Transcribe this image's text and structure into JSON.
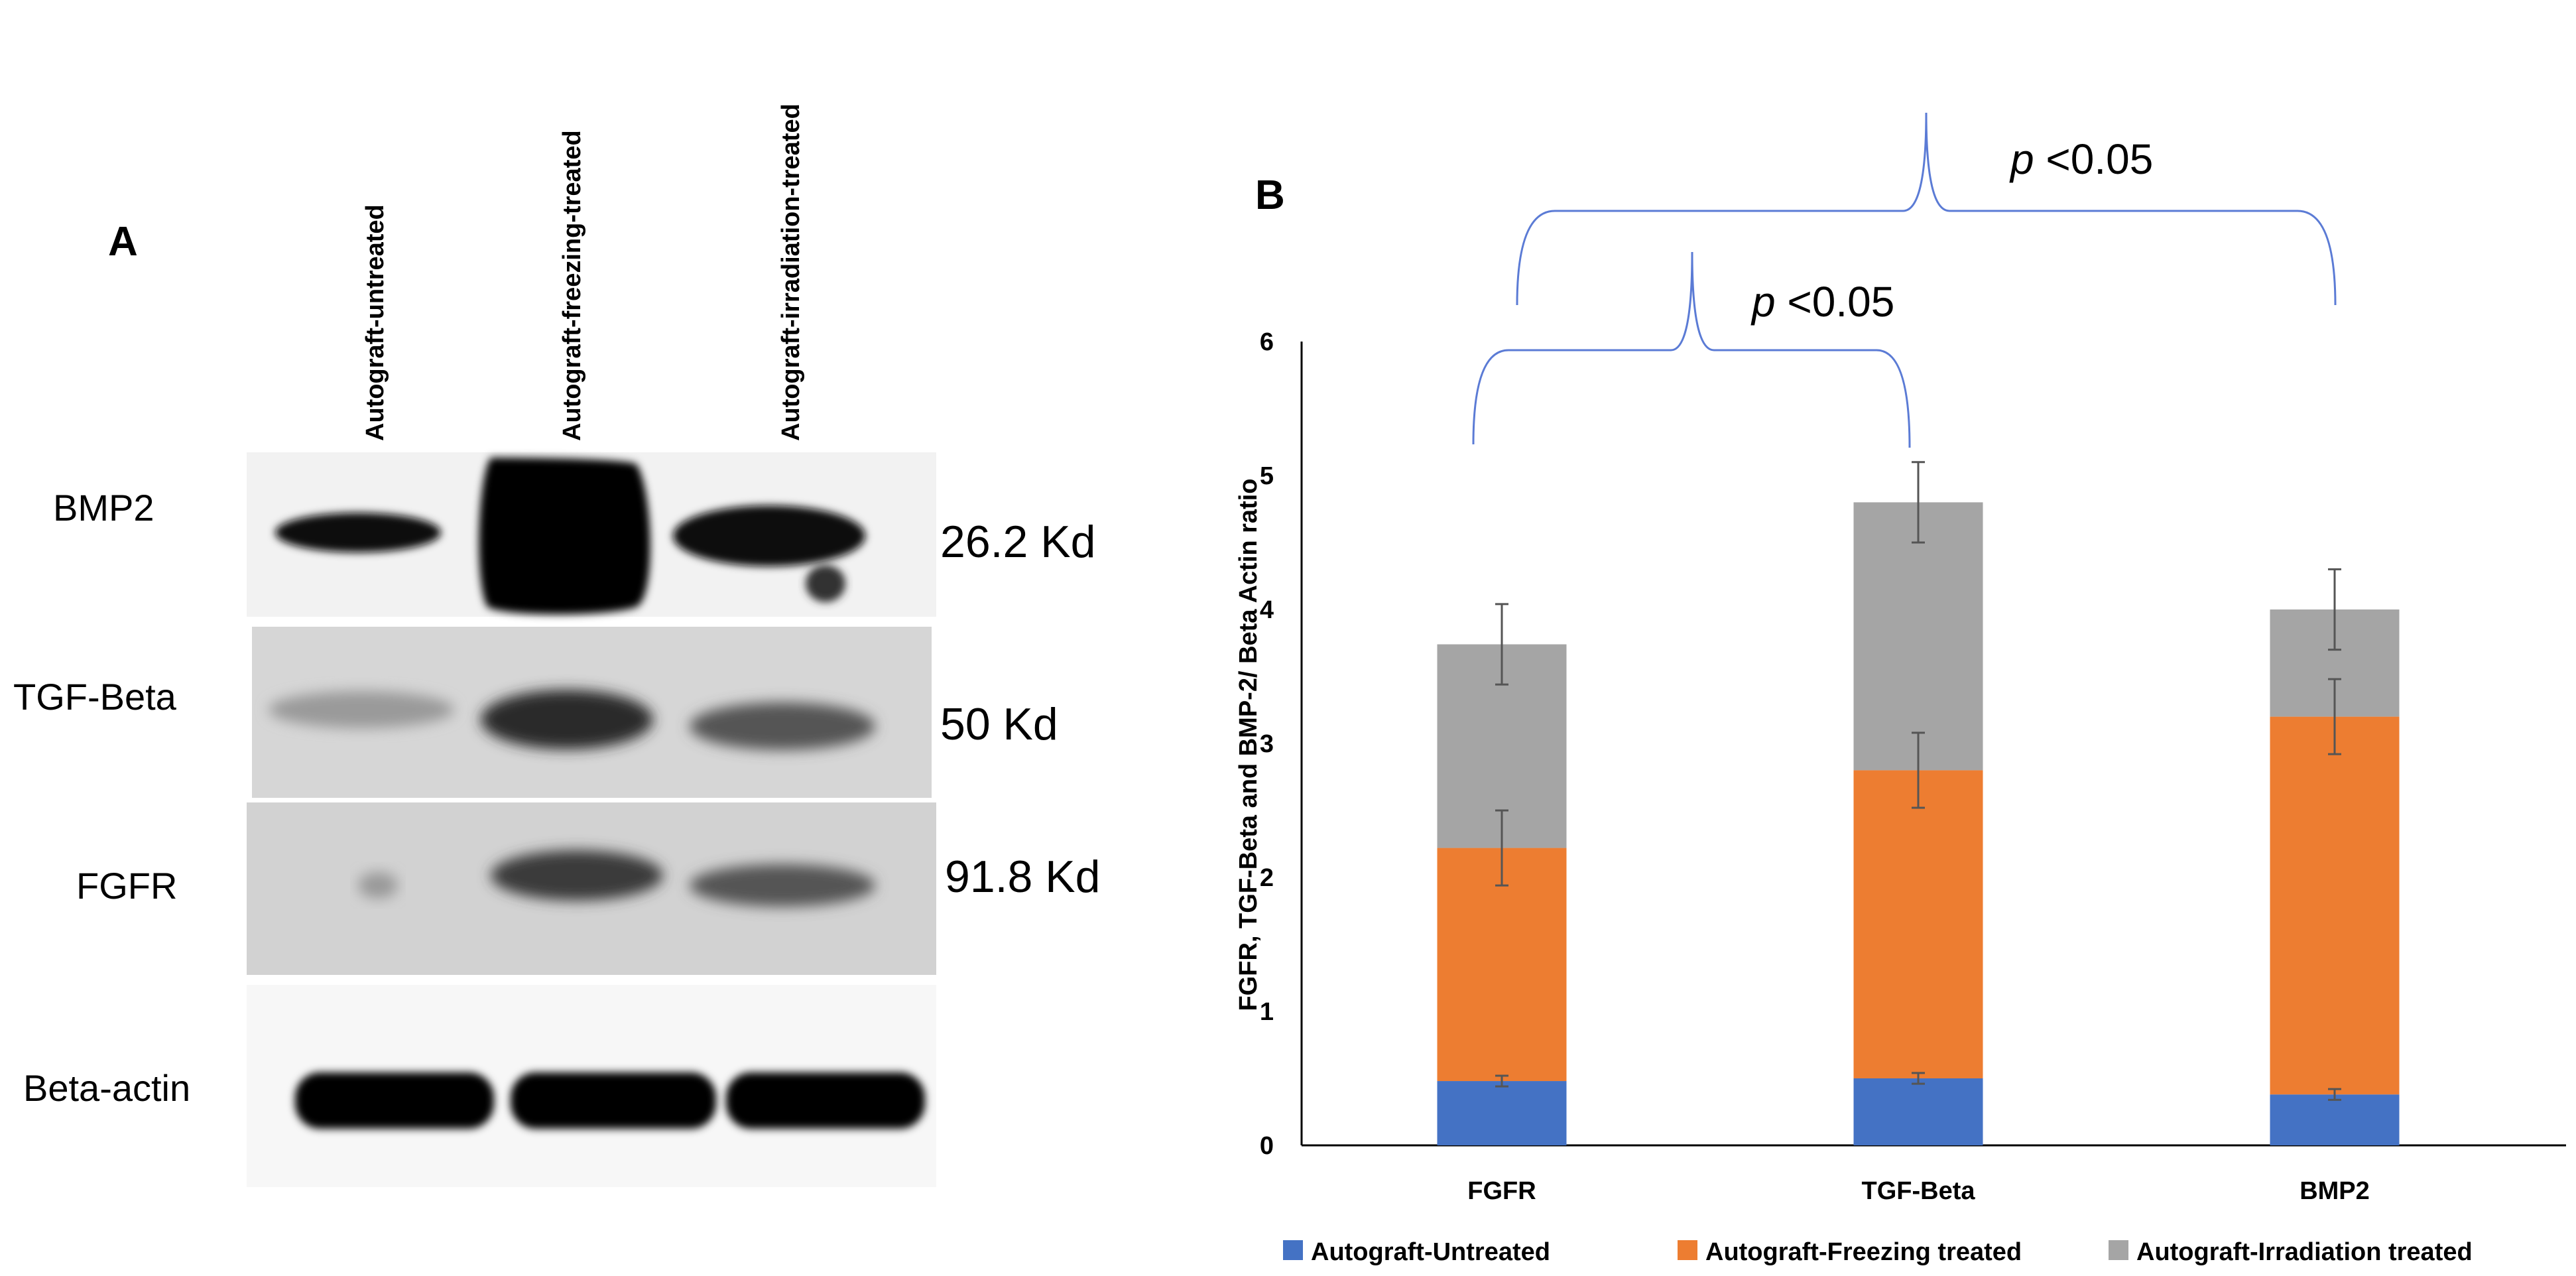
{
  "panel_a": {
    "label": "A",
    "lane_headers": [
      "Autograft-untreated",
      "Autograft-freezing-treated",
      "Autograft-irradiation-treated"
    ],
    "rows": [
      {
        "protein": "BMP2",
        "size": "26.2 Kd"
      },
      {
        "protein": "TGF-Beta",
        "size": "50 Kd"
      },
      {
        "protein": "FGFR",
        "size": "91.8 Kd"
      },
      {
        "protein": "Beta-actin",
        "size": ""
      }
    ]
  },
  "panel_b": {
    "label": "B",
    "significance": [
      {
        "prefix": "p",
        "text": " <0.05",
        "between": [
          "FGFR",
          "BMP2"
        ]
      },
      {
        "prefix": "p",
        "text": " <0.05",
        "between": [
          "FGFR",
          "TGF-Beta"
        ]
      }
    ]
  },
  "chart_data": {
    "type": "bar",
    "stacked": true,
    "categories": [
      "FGFR",
      "TGF-Beta",
      "BMP2"
    ],
    "series": [
      {
        "name": "Autograft-Untreated",
        "color": "#4472C4",
        "values": [
          0.48,
          0.5,
          0.38
        ],
        "errors": [
          0.04,
          0.04,
          0.04
        ]
      },
      {
        "name": "Autograft-Freezing treated",
        "color": "#ED7D31",
        "values": [
          1.74,
          2.3,
          2.82
        ],
        "errors": [
          0.28,
          0.28,
          0.28
        ]
      },
      {
        "name": "Autograft-Irradiation treated",
        "color": "#A5A5A5",
        "values": [
          1.52,
          2.0,
          0.8
        ],
        "errors": [
          0.3,
          0.3,
          0.3
        ]
      }
    ],
    "title": "",
    "xlabel": "",
    "ylabel": "FGFR, TGF-Beta and BMP-2/ Beta Actin ratio",
    "ylim": [
      0,
      6
    ],
    "yticks": [
      "0",
      "1",
      "2",
      "3",
      "4",
      "5",
      "6"
    ],
    "grid": false,
    "legend": "bottom"
  }
}
